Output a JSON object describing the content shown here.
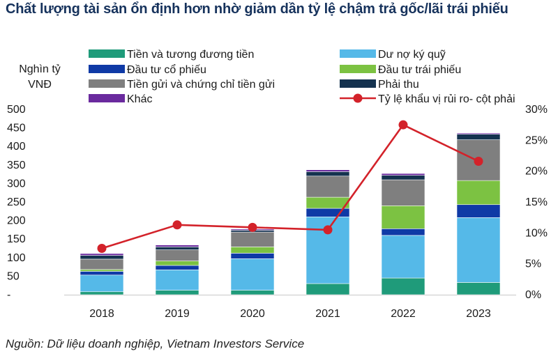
{
  "title": "Chất lượng tài sản ổn định hơn nhờ giảm dần tỷ lệ chậm trả gốc/lãi trái phiếu",
  "source": "Nguồn: Dữ liệu doanh nghiệp, Vietnam Investors Service",
  "chart_data": {
    "type": "bar",
    "stacked": true,
    "categories": [
      "2018",
      "2019",
      "2020",
      "2021",
      "2022",
      "2023"
    ],
    "ylabel_left": [
      "Nghìn tỷ",
      "VNĐ"
    ],
    "ylim_left": [
      0,
      500
    ],
    "yticks_left": [
      "-",
      "50",
      "100",
      "150",
      "200",
      "250",
      "300",
      "350",
      "400",
      "450",
      "500"
    ],
    "ylim_right": [
      0,
      30
    ],
    "yticks_right": [
      "0%",
      "5%",
      "10%",
      "15%",
      "20%",
      "25%",
      "30%"
    ],
    "legend_position": "top",
    "series": [
      {
        "name": "Tiền và tương đương tiền",
        "color": "#1f9b7a",
        "values": [
          8,
          12,
          12,
          30,
          45,
          33
        ]
      },
      {
        "name": "Dư nợ ký quỹ",
        "color": "#55b9e8",
        "values": [
          45,
          55,
          85,
          180,
          115,
          175
        ]
      },
      {
        "name": "Đầu tư cổ phiếu",
        "color": "#0f3aa6",
        "values": [
          10,
          12,
          15,
          23,
          18,
          35
        ]
      },
      {
        "name": "Đầu tư trái phiếu",
        "color": "#7cc242",
        "values": [
          5,
          12,
          17,
          30,
          62,
          65
        ]
      },
      {
        "name": "Tiền gửi và chứng chỉ tiền gửi",
        "color": "#7f7f7f",
        "values": [
          28,
          30,
          40,
          57,
          70,
          110
        ]
      },
      {
        "name": "Phải thu",
        "color": "#14324f",
        "values": [
          10,
          8,
          5,
          12,
          12,
          15
        ]
      },
      {
        "name": "Khác",
        "color": "#6a2a9e",
        "values": [
          5,
          5,
          3,
          5,
          5,
          3
        ]
      }
    ],
    "line": {
      "name": "Tỷ lệ khẩu vị rủi ro- cột phải",
      "color": "#d3222a",
      "axis": "right",
      "values": [
        7.5,
        11.3,
        10.9,
        10.5,
        27.5,
        21.6
      ]
    }
  }
}
